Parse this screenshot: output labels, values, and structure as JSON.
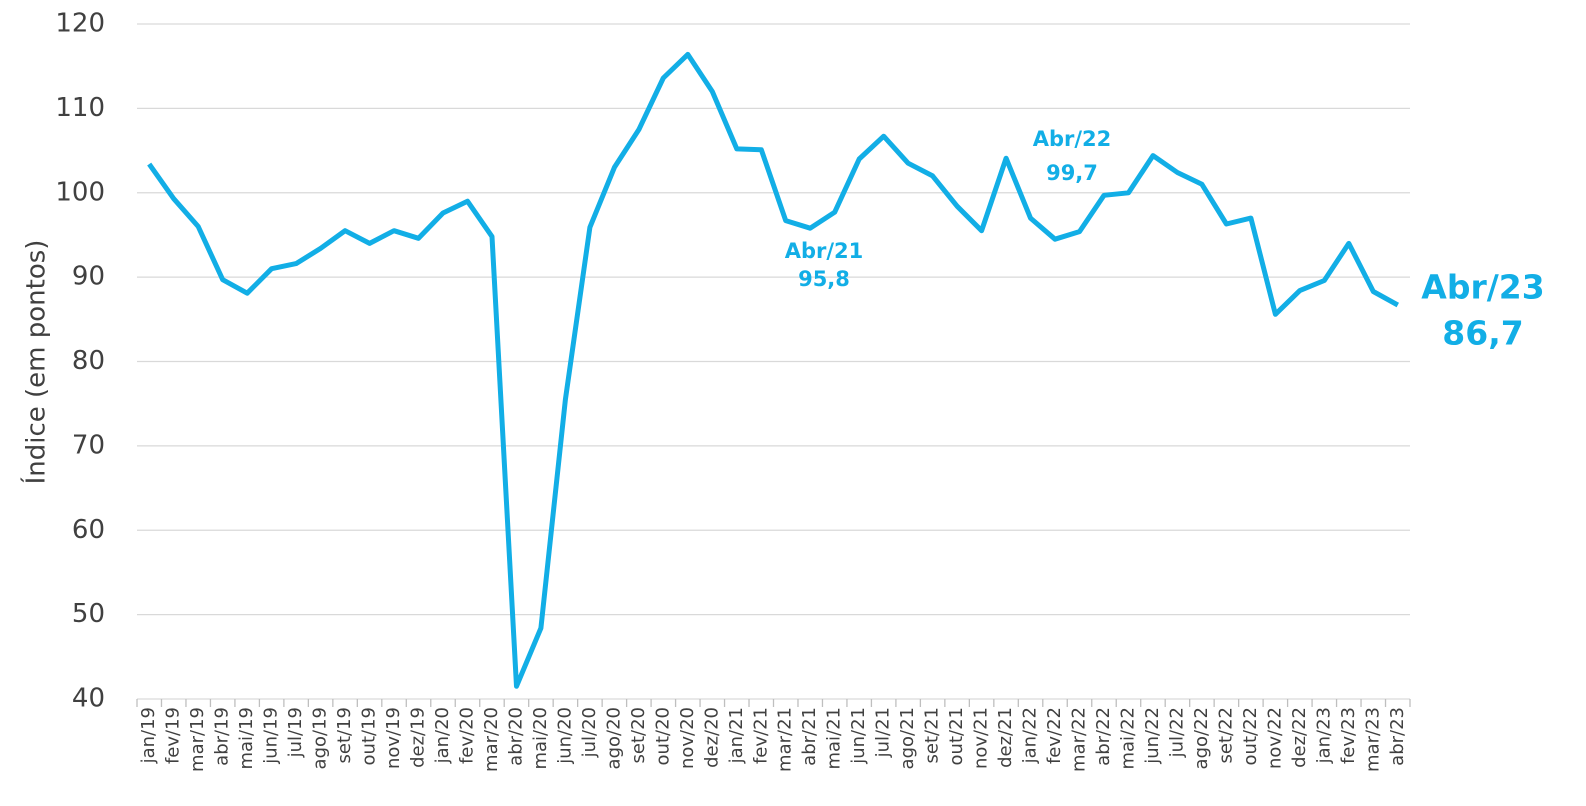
{
  "chart_data": {
    "type": "line",
    "y_label": "Índice (em pontos)",
    "categories": [
      "jan/19",
      "fev/19",
      "mar/19",
      "abr/19",
      "mai/19",
      "jun/19",
      "jul/19",
      "ago/19",
      "set/19",
      "out/19",
      "nov/19",
      "dez/19",
      "jan/20",
      "fev/20",
      "mar/20",
      "abr/20",
      "mai/20",
      "jun/20",
      "jul/20",
      "ago/20",
      "set/20",
      "out/20",
      "nov/20",
      "dez/20",
      "jan/21",
      "fev/21",
      "mar/21",
      "abr/21",
      "mai/21",
      "jun/21",
      "jul/21",
      "ago/21",
      "set/21",
      "out/21",
      "nov/21",
      "dez/21",
      "jan/22",
      "fev/22",
      "mar/22",
      "abr/22",
      "mai/22",
      "jun/22",
      "jul/22",
      "ago/22",
      "set/22",
      "out/22",
      "nov/22",
      "dez/22",
      "jan/23",
      "fev/23",
      "mar/23",
      "abr/23"
    ],
    "values": [
      103.4,
      99.3,
      96,
      89.7,
      88.1,
      91,
      91.6,
      93.4,
      95.5,
      94,
      95.5,
      94.6,
      97.6,
      99,
      94.8,
      41.5,
      48.4,
      75.5,
      95.9,
      103,
      107.5,
      113.6,
      116.4,
      112,
      105.2,
      105.1,
      96.7,
      95.8,
      97.7,
      104,
      106.7,
      103.5,
      102,
      98.4,
      95.5,
      104.1,
      97,
      94.5,
      95.4,
      99.7,
      100,
      104.4,
      102.4,
      101,
      96.3,
      97,
      85.6,
      88.4,
      89.6,
      94,
      88.3,
      86.7
    ],
    "color": "#12aee6",
    "ylim": [
      40,
      120
    ],
    "yticks": [
      40,
      50,
      60,
      70,
      80,
      90,
      100,
      110,
      120
    ],
    "grid": true,
    "annotations": [
      {
        "label": "Abr/21",
        "value": 95.8,
        "value_label": "95,8"
      },
      {
        "label": "Abr/22",
        "value": 99.7,
        "value_label": "99,7"
      },
      {
        "label": "Abr/23",
        "value": 86.7,
        "value_label": "86,7"
      }
    ]
  }
}
